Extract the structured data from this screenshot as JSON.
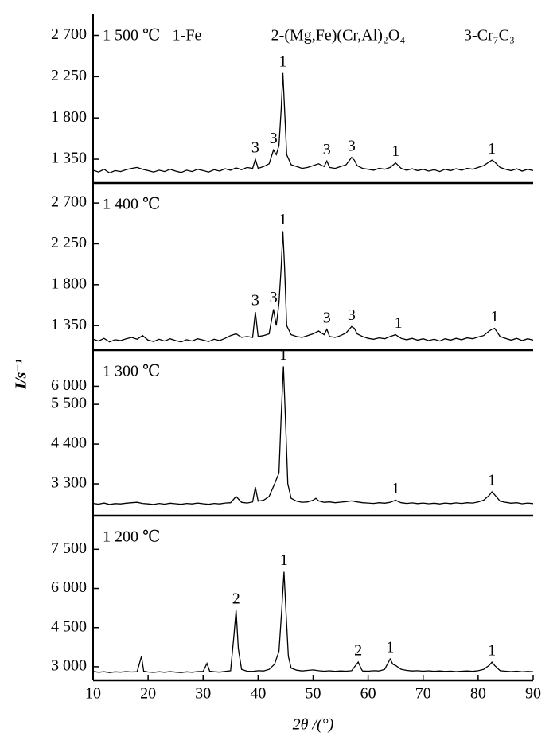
{
  "chart_data": [
    {
      "type": "line",
      "title": "1 500 ℃",
      "color": "#000000",
      "phases": [
        "1-Fe",
        "2-(Mg,Fe)(Cr,Al)₂O₄",
        "3-Cr₇C₃"
      ],
      "ylabel": "I/s⁻¹",
      "xlim": [
        10,
        90
      ],
      "ylim": [
        1090,
        2930
      ],
      "yticks": [
        {
          "value": 1350,
          "label": "1 350"
        },
        {
          "value": 1800,
          "label": "1 800"
        },
        {
          "value": 2250,
          "label": "2 250"
        },
        {
          "value": 2700,
          "label": "2 700"
        }
      ],
      "x": [
        10,
        11,
        12,
        13,
        14,
        15,
        16,
        17,
        18,
        19,
        20,
        21,
        22,
        23,
        24,
        25,
        26,
        27,
        28,
        29,
        30,
        31,
        32,
        33,
        34,
        35,
        36,
        37,
        38,
        39,
        39.5,
        40,
        41,
        42,
        42.8,
        43.3,
        43.8,
        44.2,
        44.5,
        44.8,
        45.2,
        46,
        47,
        48,
        49,
        50,
        51,
        52,
        52.5,
        53,
        54,
        55,
        56,
        57,
        57.5,
        58,
        59,
        60,
        61,
        62,
        63,
        64,
        65,
        65.5,
        66,
        67,
        68,
        69,
        70,
        71,
        72,
        73,
        74,
        75,
        76,
        77,
        78,
        79,
        80,
        81,
        82,
        82.5,
        83,
        84,
        85,
        86,
        87,
        88,
        89,
        90
      ],
      "values": [
        1230,
        1210,
        1240,
        1200,
        1225,
        1215,
        1235,
        1250,
        1260,
        1240,
        1225,
        1210,
        1230,
        1215,
        1240,
        1220,
        1205,
        1230,
        1215,
        1240,
        1225,
        1210,
        1235,
        1220,
        1245,
        1230,
        1255,
        1235,
        1260,
        1250,
        1350,
        1250,
        1270,
        1300,
        1450,
        1400,
        1500,
        1900,
        2290,
        1900,
        1400,
        1290,
        1270,
        1250,
        1260,
        1280,
        1300,
        1270,
        1330,
        1260,
        1250,
        1270,
        1290,
        1370,
        1340,
        1280,
        1250,
        1240,
        1230,
        1250,
        1240,
        1260,
        1310,
        1280,
        1250,
        1230,
        1245,
        1225,
        1240,
        1220,
        1235,
        1215,
        1240,
        1225,
        1245,
        1230,
        1250,
        1240,
        1260,
        1280,
        1320,
        1340,
        1320,
        1260,
        1240,
        1225,
        1245,
        1220,
        1240,
        1225
      ],
      "annotations": [
        {
          "text": "1",
          "x": 44.5
        },
        {
          "text": "3",
          "x": 39.5
        },
        {
          "text": "3",
          "x": 42.8
        },
        {
          "text": "3",
          "x": 52.5
        },
        {
          "text": "3",
          "x": 57
        },
        {
          "text": "1",
          "x": 65
        },
        {
          "text": "1",
          "x": 82.5
        }
      ]
    },
    {
      "type": "line",
      "title": "1 400 ℃",
      "color": "#000000",
      "xlim": [
        10,
        90
      ],
      "ylim": [
        1080,
        2920
      ],
      "yticks": [
        {
          "value": 1350,
          "label": "1 350"
        },
        {
          "value": 1800,
          "label": "1 800"
        },
        {
          "value": 2250,
          "label": "2 250"
        },
        {
          "value": 2700,
          "label": "2 700"
        }
      ],
      "x": [
        10,
        11,
        12,
        13,
        14,
        15,
        16,
        17,
        18,
        19,
        20,
        21,
        22,
        23,
        24,
        25,
        26,
        27,
        28,
        29,
        30,
        31,
        32,
        33,
        34,
        35,
        36,
        37,
        38,
        39,
        39.5,
        40,
        41,
        42,
        42.8,
        43.3,
        43.8,
        44.2,
        44.5,
        44.8,
        45.2,
        46,
        47,
        48,
        49,
        50,
        51,
        52,
        52.5,
        53,
        54,
        55,
        56,
        57,
        57.5,
        58,
        59,
        60,
        61,
        62,
        63,
        64,
        65,
        65.5,
        66,
        67,
        68,
        69,
        70,
        71,
        72,
        73,
        74,
        75,
        76,
        77,
        78,
        79,
        80,
        81,
        82,
        82.5,
        83,
        84,
        85,
        86,
        87,
        88,
        89,
        90
      ],
      "values": [
        1200,
        1180,
        1210,
        1170,
        1195,
        1185,
        1205,
        1220,
        1200,
        1240,
        1190,
        1175,
        1200,
        1180,
        1205,
        1185,
        1170,
        1195,
        1180,
        1205,
        1190,
        1175,
        1200,
        1185,
        1210,
        1240,
        1260,
        1220,
        1230,
        1220,
        1500,
        1230,
        1240,
        1260,
        1530,
        1350,
        1600,
        2000,
        2390,
        2000,
        1350,
        1250,
        1230,
        1220,
        1240,
        1260,
        1290,
        1250,
        1310,
        1230,
        1220,
        1240,
        1270,
        1340,
        1320,
        1260,
        1230,
        1210,
        1200,
        1215,
        1205,
        1230,
        1250,
        1230,
        1210,
        1195,
        1210,
        1190,
        1205,
        1185,
        1200,
        1180,
        1205,
        1190,
        1210,
        1195,
        1215,
        1205,
        1225,
        1240,
        1290,
        1310,
        1320,
        1230,
        1210,
        1190,
        1210,
        1185,
        1205,
        1190
      ],
      "annotations": [
        {
          "text": "1",
          "x": 44.5
        },
        {
          "text": "3",
          "x": 39.5
        },
        {
          "text": "3",
          "x": 42.8
        },
        {
          "text": "3",
          "x": 52.5
        },
        {
          "text": "3",
          "x": 57
        },
        {
          "text": "1",
          "x": 65.5
        },
        {
          "text": "1",
          "x": 83
        }
      ]
    },
    {
      "type": "line",
      "title": "1 300 ℃",
      "color": "#000000",
      "xlim": [
        10,
        90
      ],
      "ylim": [
        2420,
        7000
      ],
      "yticks": [
        {
          "value": 3300,
          "label": "3 300"
        },
        {
          "value": 4400,
          "label": "4 400"
        },
        {
          "value": 5500,
          "label": "5 500"
        },
        {
          "value": 6000,
          "label": "6 000"
        }
      ],
      "x": [
        10,
        11,
        12,
        13,
        14,
        15,
        16,
        17,
        18,
        19,
        20,
        21,
        22,
        23,
        24,
        25,
        26,
        27,
        28,
        29,
        30,
        31,
        32,
        33,
        34,
        35,
        36,
        37,
        38,
        39,
        39.5,
        40,
        41,
        42,
        43,
        43.8,
        44.2,
        44.6,
        45,
        45.4,
        46,
        47,
        48,
        49,
        50,
        50.5,
        51,
        52,
        53,
        54,
        55,
        56,
        57,
        58,
        59,
        60,
        61,
        62,
        63,
        64,
        65,
        65.5,
        66,
        67,
        68,
        69,
        70,
        71,
        72,
        73,
        74,
        75,
        76,
        77,
        78,
        79,
        80,
        81,
        82,
        82.5,
        83,
        84,
        85,
        86,
        87,
        88,
        89,
        90
      ],
      "values": [
        2760,
        2740,
        2770,
        2730,
        2755,
        2745,
        2765,
        2780,
        2790,
        2760,
        2745,
        2730,
        2760,
        2740,
        2765,
        2750,
        2735,
        2760,
        2745,
        2770,
        2750,
        2735,
        2760,
        2745,
        2770,
        2780,
        2950,
        2790,
        2770,
        2800,
        3210,
        2820,
        2850,
        2950,
        3300,
        3600,
        5200,
        6550,
        5000,
        3300,
        2900,
        2820,
        2790,
        2800,
        2850,
        2900,
        2830,
        2790,
        2800,
        2780,
        2795,
        2810,
        2830,
        2800,
        2780,
        2770,
        2760,
        2780,
        2765,
        2790,
        2850,
        2810,
        2780,
        2760,
        2775,
        2755,
        2770,
        2750,
        2765,
        2745,
        2770,
        2755,
        2775,
        2760,
        2780,
        2770,
        2800,
        2850,
        2980,
        3080,
        3000,
        2820,
        2790,
        2765,
        2780,
        2750,
        2770,
        2755
      ],
      "annotations": [
        {
          "text": "1",
          "x": 44.6
        },
        {
          "text": "1",
          "x": 65
        },
        {
          "text": "1",
          "x": 82.5
        }
      ]
    },
    {
      "type": "line",
      "title": "1 200 ℃",
      "color": "#000000",
      "xlabel": "2θ /(°)",
      "xlim": [
        10,
        90
      ],
      "ylim": [
        2480,
        8790
      ],
      "xticks": [
        10,
        20,
        30,
        40,
        50,
        60,
        70,
        80,
        90
      ],
      "yticks": [
        {
          "value": 3000,
          "label": "3 000"
        },
        {
          "value": 4500,
          "label": "4 500"
        },
        {
          "value": 6000,
          "label": "6 000"
        },
        {
          "value": 7500,
          "label": "7 500"
        }
      ],
      "x": [
        10,
        11,
        12,
        13,
        14,
        15,
        16,
        17,
        18,
        18.8,
        19.2,
        20,
        21,
        22,
        23,
        24,
        25,
        26,
        27,
        28,
        29,
        30,
        30.7,
        31.2,
        32,
        33,
        34,
        35,
        35.6,
        36,
        36.4,
        37,
        38,
        39,
        40,
        41,
        42,
        43,
        43.8,
        44.3,
        44.7,
        45.1,
        45.5,
        46,
        47,
        48,
        49,
        50,
        51,
        52,
        53,
        54,
        55,
        56,
        57,
        58.2,
        58.8,
        59,
        60,
        61,
        62,
        63,
        64,
        64.5,
        65,
        66,
        67,
        68,
        69,
        70,
        71,
        72,
        73,
        74,
        75,
        76,
        77,
        78,
        79,
        80,
        81,
        82,
        82.5,
        83,
        84,
        85,
        86,
        87,
        88,
        89,
        90
      ],
      "values": [
        2820,
        2790,
        2810,
        2780,
        2805,
        2795,
        2815,
        2800,
        2810,
        3400,
        2830,
        2800,
        2785,
        2810,
        2790,
        2815,
        2795,
        2780,
        2805,
        2790,
        2815,
        2820,
        3130,
        2830,
        2810,
        2795,
        2820,
        2850,
        4200,
        5170,
        3700,
        2900,
        2830,
        2820,
        2850,
        2840,
        2900,
        3100,
        3600,
        5200,
        6640,
        5000,
        3400,
        2950,
        2870,
        2840,
        2860,
        2880,
        2850,
        2830,
        2845,
        2825,
        2840,
        2830,
        2850,
        3180,
        2900,
        2840,
        2830,
        2850,
        2840,
        2900,
        3300,
        3100,
        3050,
        2900,
        2860,
        2840,
        2850,
        2830,
        2845,
        2825,
        2840,
        2820,
        2835,
        2815,
        2830,
        2840,
        2825,
        2850,
        2900,
        3050,
        3180,
        3050,
        2850,
        2830,
        2815,
        2830,
        2805,
        2820,
        2810
      ],
      "annotations": [
        {
          "text": "1",
          "x": 44.7
        },
        {
          "text": "2",
          "x": 36
        },
        {
          "text": "2",
          "x": 58.2
        },
        {
          "text": "1",
          "x": 64
        },
        {
          "text": "1",
          "x": 82.5
        }
      ]
    }
  ]
}
